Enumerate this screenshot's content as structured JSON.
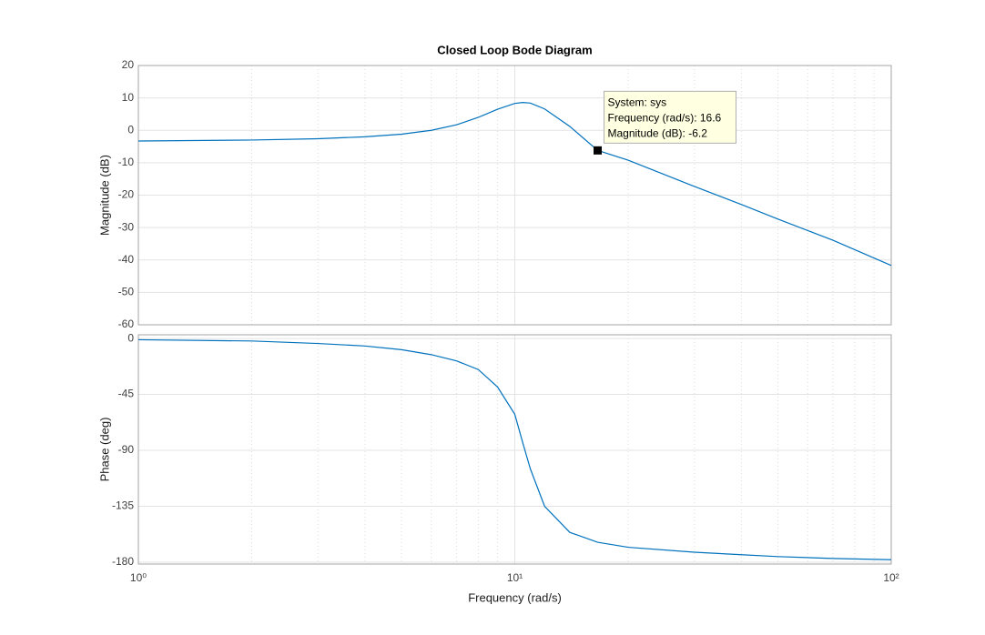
{
  "chart_data": [
    {
      "type": "line",
      "title": "Closed Loop Bode Diagram",
      "y_label": "Magnitude (dB)",
      "x": [
        1,
        2,
        3,
        4,
        5,
        6,
        7,
        8,
        9,
        10,
        10.5,
        11,
        12,
        14,
        16.6,
        20,
        30,
        40,
        50,
        70,
        100
      ],
      "series": [
        {
          "color": "#0072bd",
          "values": [
            -3.3,
            -3.0,
            -2.6,
            -2.0,
            -1.2,
            0.0,
            1.7,
            4.0,
            6.5,
            8.3,
            8.6,
            8.4,
            6.6,
            1.2,
            -6.2,
            -9.2,
            -17.3,
            -22.9,
            -27.4,
            -33.9,
            -41.7
          ]
        }
      ],
      "xscale": "log",
      "xlim": [
        1,
        100
      ],
      "xticks": [
        1,
        10,
        100
      ],
      "show_xticklabels": false,
      "ylim": [
        -60,
        20
      ],
      "yticks": [
        20,
        10,
        0,
        -10,
        -20,
        -30,
        -40,
        -50,
        -60
      ],
      "grid": true,
      "minor_grid": true,
      "datatip": {
        "x": 16.6,
        "y": -6.2,
        "lines": [
          "System: sys",
          "Frequency (rad/s): 16.6",
          "Magnitude (dB): -6.2"
        ]
      }
    },
    {
      "type": "line",
      "x_label": "Frequency  (rad/s)",
      "y_label": "Phase (deg)",
      "x": [
        1,
        2,
        3,
        4,
        5,
        6,
        7,
        8,
        9,
        10,
        10.5,
        11,
        12,
        14,
        16.6,
        20,
        30,
        40,
        50,
        70,
        100
      ],
      "series": [
        {
          "color": "#0072bd",
          "values": [
            -1,
            -2,
            -4,
            -6,
            -9,
            -13,
            -18,
            -25,
            -39,
            -61,
            -84,
            -105,
            -135,
            -156,
            -164,
            -168,
            -172,
            -174,
            -175.5,
            -177,
            -178
          ]
        }
      ],
      "xscale": "log",
      "xlim": [
        1,
        100
      ],
      "xticks": [
        {
          "value": 1,
          "label": "10⁰"
        },
        {
          "value": 10,
          "label": "10¹"
        },
        {
          "value": 100,
          "label": "10²"
        }
      ],
      "show_xticklabels": true,
      "ylim": [
        -181.5,
        3
      ],
      "yticks": [
        0,
        -45,
        -90,
        -135,
        -180
      ],
      "grid": true,
      "minor_grid": true
    }
  ]
}
